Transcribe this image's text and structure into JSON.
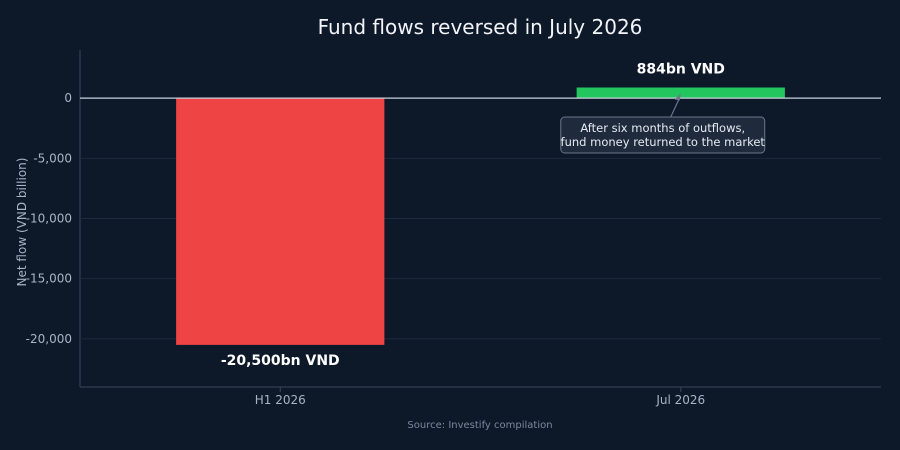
{
  "chart_data": {
    "type": "bar",
    "title": "Fund flows reversed in July 2026",
    "xlabel": "",
    "ylabel": "Net flow (VND billion)",
    "categories": [
      "H1 2026",
      "Jul 2026"
    ],
    "values": [
      -20500,
      884
    ],
    "data_labels": [
      "-20,500bn VND",
      "884bn VND"
    ],
    "bar_colors": [
      "#ef4444",
      "#22c55e"
    ],
    "ylim": [
      -24000,
      4000
    ],
    "yticks": [
      0,
      -5000,
      -10000,
      -15000,
      -20000
    ],
    "ytick_labels": [
      "0",
      "-5,000",
      "-10,000",
      "-15,000",
      "-20,000"
    ],
    "grid": true,
    "annotation": {
      "lines": [
        "After six months of outflows,",
        "fund money returned to the market"
      ],
      "target_category": "Jul 2026"
    },
    "source": "Source: Investify compilation"
  },
  "colors": {
    "background": "#0d1829",
    "grid": "#1e2a3d",
    "zero_line": "#c9d1dc",
    "axis": "#3a475b",
    "annotation_box": "#1f2b3d",
    "annotation_border": "#6b7789"
  }
}
